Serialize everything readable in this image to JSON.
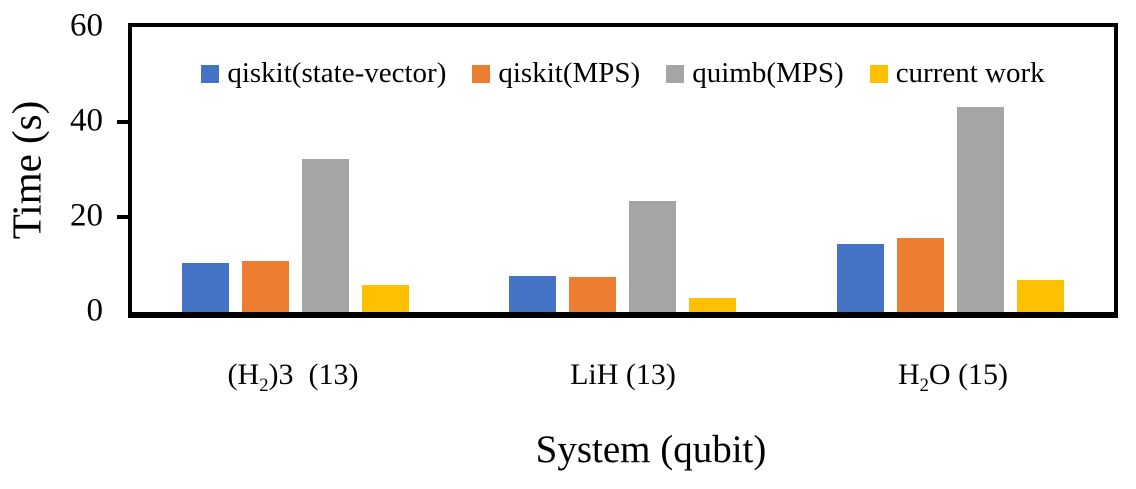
{
  "chart_data": {
    "type": "bar",
    "xlabel": "System (qubit)",
    "ylabel": "Time (s)",
    "ylim": [
      0,
      60
    ],
    "yticks": [
      0,
      20,
      40,
      60
    ],
    "grid": false,
    "legend_position": "top-inside",
    "categories": [
      "(H2)3 (13)",
      "LiH (13)",
      "H2O (15)"
    ],
    "category_labels": [
      [
        {
          "t": "(H"
        },
        {
          "t": "2",
          "sub": true
        },
        {
          "t": ")3  (13)"
        }
      ],
      [
        {
          "t": "LiH (13)"
        }
      ],
      [
        {
          "t": "H"
        },
        {
          "t": "2",
          "sub": true
        },
        {
          "t": "O (15)"
        }
      ]
    ],
    "series": [
      {
        "name": "qiskit(state-vector)",
        "color": "#4472C4",
        "values": [
          10.3,
          7.5,
          14.4
        ]
      },
      {
        "name": "qiskit(MPS)",
        "color": "#ED7D31",
        "values": [
          10.7,
          7.3,
          15.6
        ]
      },
      {
        "name": "quimb(MPS)",
        "color": "#A5A5A5",
        "values": [
          32.2,
          23.3,
          43.2
        ]
      },
      {
        "name": "current work",
        "color": "#FFC000",
        "values": [
          5.7,
          2.9,
          6.8
        ]
      }
    ],
    "axis_color": "#000000"
  }
}
